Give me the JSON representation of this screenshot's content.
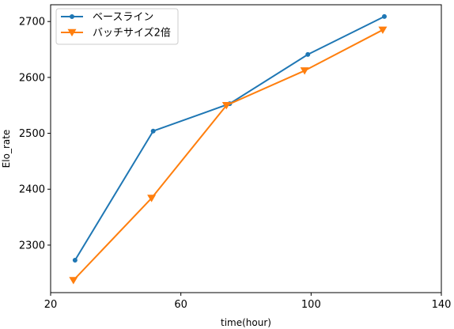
{
  "chart_data": {
    "type": "line",
    "title": "",
    "xlabel": "time(hour)",
    "ylabel": "Elo_rate",
    "xlim": [
      20,
      140
    ],
    "ylim": [
      2215,
      2730
    ],
    "xticks": [
      20,
      60,
      100,
      140
    ],
    "yticks": [
      2300,
      2400,
      2500,
      2600,
      2700
    ],
    "grid": false,
    "legend_position": "top-left",
    "series": [
      {
        "name": "ベースライン",
        "color": "#1f77b4",
        "marker": "circle",
        "x": [
          27.5,
          51.5,
          75,
          99,
          122.5
        ],
        "y": [
          2273,
          2504,
          2553,
          2641,
          2709
        ]
      },
      {
        "name": "バッチサイズ2倍",
        "color": "#ff7f0e",
        "marker": "triangle-down",
        "x": [
          27,
          51,
          74,
          98,
          122
        ],
        "y": [
          2237,
          2384,
          2550,
          2612,
          2685
        ]
      }
    ]
  }
}
